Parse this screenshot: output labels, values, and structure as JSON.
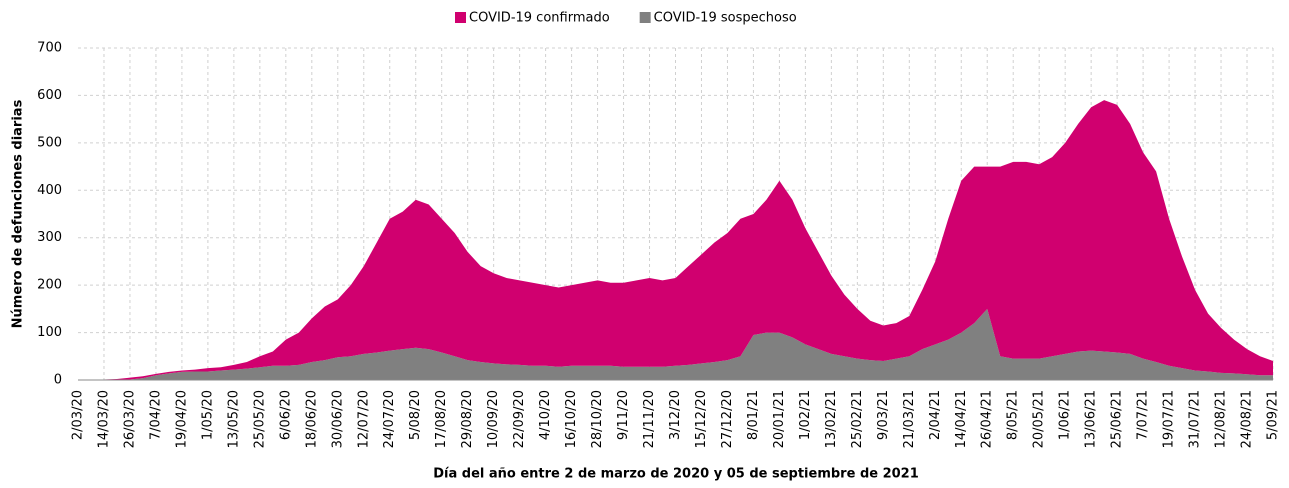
{
  "chart_data": {
    "type": "stacked_area",
    "xlabel": "Día del año entre 2 de marzo de 2020 y 05 de septiembre de 2021",
    "ylabel": "Número de defunciones diarias",
    "categories": [
      "2/03/20",
      null,
      "14/03/20",
      null,
      "26/03/20",
      null,
      "7/04/20",
      null,
      "19/04/20",
      null,
      "1/05/20",
      null,
      "13/05/20",
      null,
      "25/05/20",
      null,
      "6/06/20",
      null,
      "18/06/20",
      null,
      "30/06/20",
      null,
      "12/07/20",
      null,
      "24/07/20",
      null,
      "5/08/20",
      null,
      "17/08/20",
      null,
      "29/08/20",
      null,
      "10/09/20",
      null,
      "22/09/20",
      null,
      "4/10/20",
      null,
      "16/10/20",
      null,
      "28/10/20",
      null,
      "9/11/20",
      null,
      "21/11/20",
      null,
      "3/12/20",
      null,
      "15/12/20",
      null,
      "27/12/20",
      null,
      "8/01/21",
      null,
      "20/01/21",
      null,
      "1/02/21",
      null,
      "13/02/21",
      null,
      "25/02/21",
      null,
      "9/03/21",
      null,
      "21/03/21",
      null,
      "2/04/21",
      null,
      "14/04/21",
      null,
      "26/04/21",
      null,
      "8/05/21",
      null,
      "20/05/21",
      null,
      "1/06/21",
      null,
      "13/06/21",
      null,
      "25/06/21",
      null,
      "7/07/21",
      null,
      "19/07/21",
      null,
      "31/07/21",
      null,
      "12/08/21",
      null,
      "24/08/21",
      null,
      "5/09/21"
    ],
    "series": [
      {
        "name": "COVID-19 confirmado",
        "color": "#d0006f",
        "values": [
          0,
          0,
          1,
          2,
          4,
          4,
          3,
          3,
          3,
          4,
          7,
          7,
          10,
          14,
          23,
          30,
          55,
          68,
          92,
          113,
          122,
          150,
          185,
          232,
          278,
          290,
          312,
          305,
          282,
          260,
          228,
          202,
          190,
          182,
          178,
          175,
          170,
          167,
          170,
          175,
          180,
          175,
          177,
          182,
          187,
          182,
          185,
          208,
          230,
          252,
          268,
          290,
          255,
          280,
          320,
          290,
          245,
          205,
          165,
          130,
          105,
          83,
          75,
          75,
          85,
          125,
          175,
          255,
          320,
          330,
          300,
          400,
          415,
          415,
          410,
          420,
          445,
          480,
          513,
          530,
          522,
          485,
          435,
          402,
          310,
          235,
          170,
          122,
          95,
          71,
          53,
          40,
          30
        ]
      },
      {
        "name": "COVID-19 sospechoso",
        "color": "#808080",
        "values": [
          0,
          0,
          0,
          0,
          1,
          4,
          10,
          14,
          17,
          18,
          18,
          20,
          22,
          24,
          27,
          30,
          30,
          32,
          38,
          42,
          48,
          50,
          55,
          58,
          62,
          65,
          68,
          65,
          58,
          50,
          42,
          38,
          35,
          33,
          32,
          30,
          30,
          28,
          30,
          30,
          30,
          30,
          28,
          28,
          28,
          28,
          30,
          32,
          35,
          38,
          42,
          50,
          95,
          100,
          100,
          90,
          75,
          65,
          55,
          50,
          45,
          42,
          40,
          45,
          50,
          65,
          75,
          85,
          100,
          120,
          150,
          50,
          45,
          45,
          45,
          50,
          55,
          60,
          62,
          60,
          58,
          55,
          45,
          38,
          30,
          25,
          20,
          18,
          15,
          14,
          12,
          10,
          10
        ]
      }
    ],
    "ylim": [
      0,
      700
    ],
    "yticks": [
      0,
      100,
      200,
      300,
      400,
      500,
      600,
      700
    ],
    "grid": true
  }
}
